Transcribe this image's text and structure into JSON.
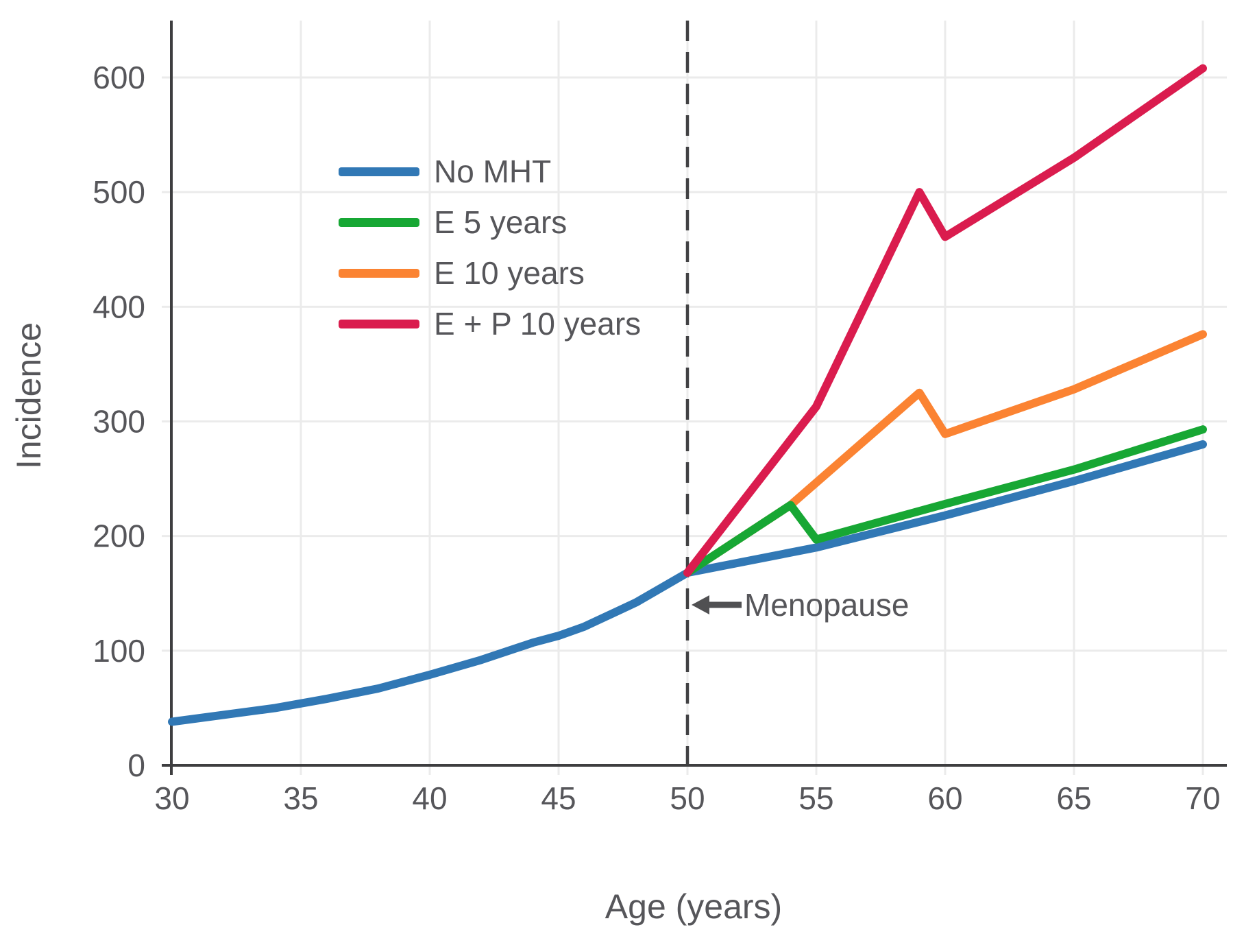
{
  "figure": {
    "background": "#ffffff",
    "text_color": "#56565a",
    "axis_color": "#3e3e40",
    "grid_color": "#ebebeb",
    "dashed_line_color": "#414143"
  },
  "chart_data": {
    "type": "line",
    "title": "",
    "xlabel": "Age (years)",
    "ylabel": "Incidence",
    "x_ticks": [
      30,
      35,
      40,
      45,
      50,
      55,
      60,
      65,
      70
    ],
    "y_ticks": [
      0,
      100,
      200,
      300,
      400,
      500,
      600
    ],
    "xlim": [
      30,
      71
    ],
    "ylim": [
      0,
      650
    ],
    "grid": true,
    "legend_position": "upper-left-inside",
    "dashed_vline_x": 50,
    "annotation": {
      "label": "Menopause",
      "x": 50,
      "y": 140,
      "arrow": "left"
    },
    "draw_order": [
      0,
      2,
      1,
      3
    ],
    "series": [
      {
        "name": "No MHT",
        "color": "#3178b5",
        "points": [
          [
            30,
            38
          ],
          [
            32,
            44
          ],
          [
            34,
            50
          ],
          [
            36,
            58
          ],
          [
            38,
            67
          ],
          [
            40,
            79
          ],
          [
            42,
            92
          ],
          [
            44,
            107
          ],
          [
            45,
            113
          ],
          [
            46,
            121
          ],
          [
            48,
            142
          ],
          [
            50,
            168
          ],
          [
            55,
            190
          ],
          [
            60,
            218
          ],
          [
            65,
            248
          ],
          [
            70,
            280
          ]
        ]
      },
      {
        "name": "E 5 years",
        "color": "#17a734",
        "points": [
          [
            50,
            168
          ],
          [
            54,
            227
          ],
          [
            55,
            197
          ],
          [
            60,
            228
          ],
          [
            65,
            258
          ],
          [
            70,
            293
          ]
        ]
      },
      {
        "name": "E 10 years",
        "color": "#fb8332",
        "points": [
          [
            50,
            168
          ],
          [
            54,
            227
          ],
          [
            59,
            325
          ],
          [
            60,
            289
          ],
          [
            65,
            328
          ],
          [
            70,
            376
          ]
        ]
      },
      {
        "name": "E + P 10 years",
        "color": "#da1c4e",
        "points": [
          [
            50,
            168
          ],
          [
            55,
            313
          ],
          [
            59,
            500
          ],
          [
            60,
            461
          ],
          [
            65,
            530
          ],
          [
            70,
            608
          ]
        ]
      }
    ]
  }
}
